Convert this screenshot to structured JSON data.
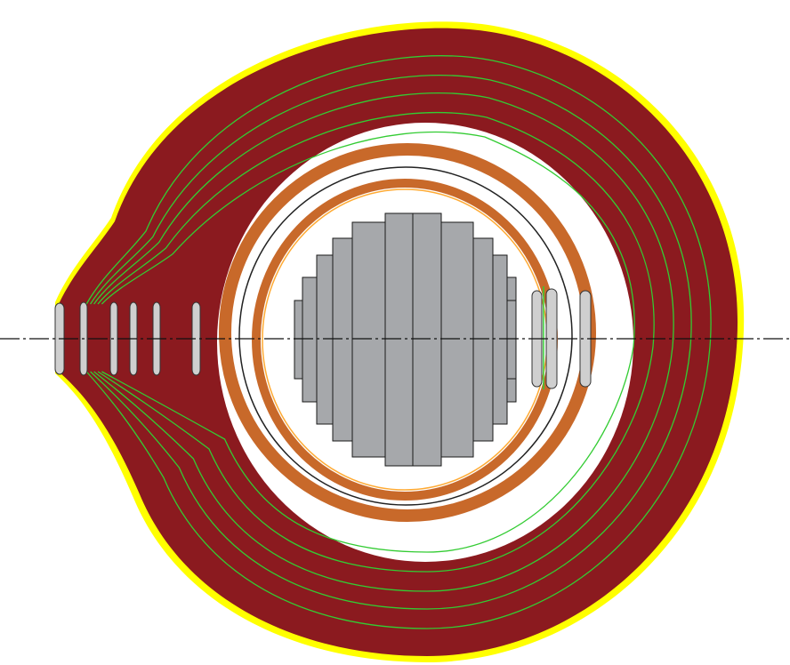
{
  "colors": {
    "background": "#ffffff",
    "outer_edge": "#ffff00",
    "winding": "#8b1a1f",
    "winding_lines": "#33cc33",
    "cylinder": "#c8692a",
    "cylinder_edge": "#ffaa33",
    "core": "#a6a8ab",
    "core_stroke": "#1a1a1a",
    "spacer": "#cfcfcf",
    "spacer_stroke": "#333333",
    "axis": "#111111",
    "gap": "#ffffff"
  },
  "layers": {
    "outer_winding": "winding",
    "insulation_cylinders": "cylinder",
    "core": "core",
    "spacers": "spacer",
    "axis": "centerline"
  }
}
